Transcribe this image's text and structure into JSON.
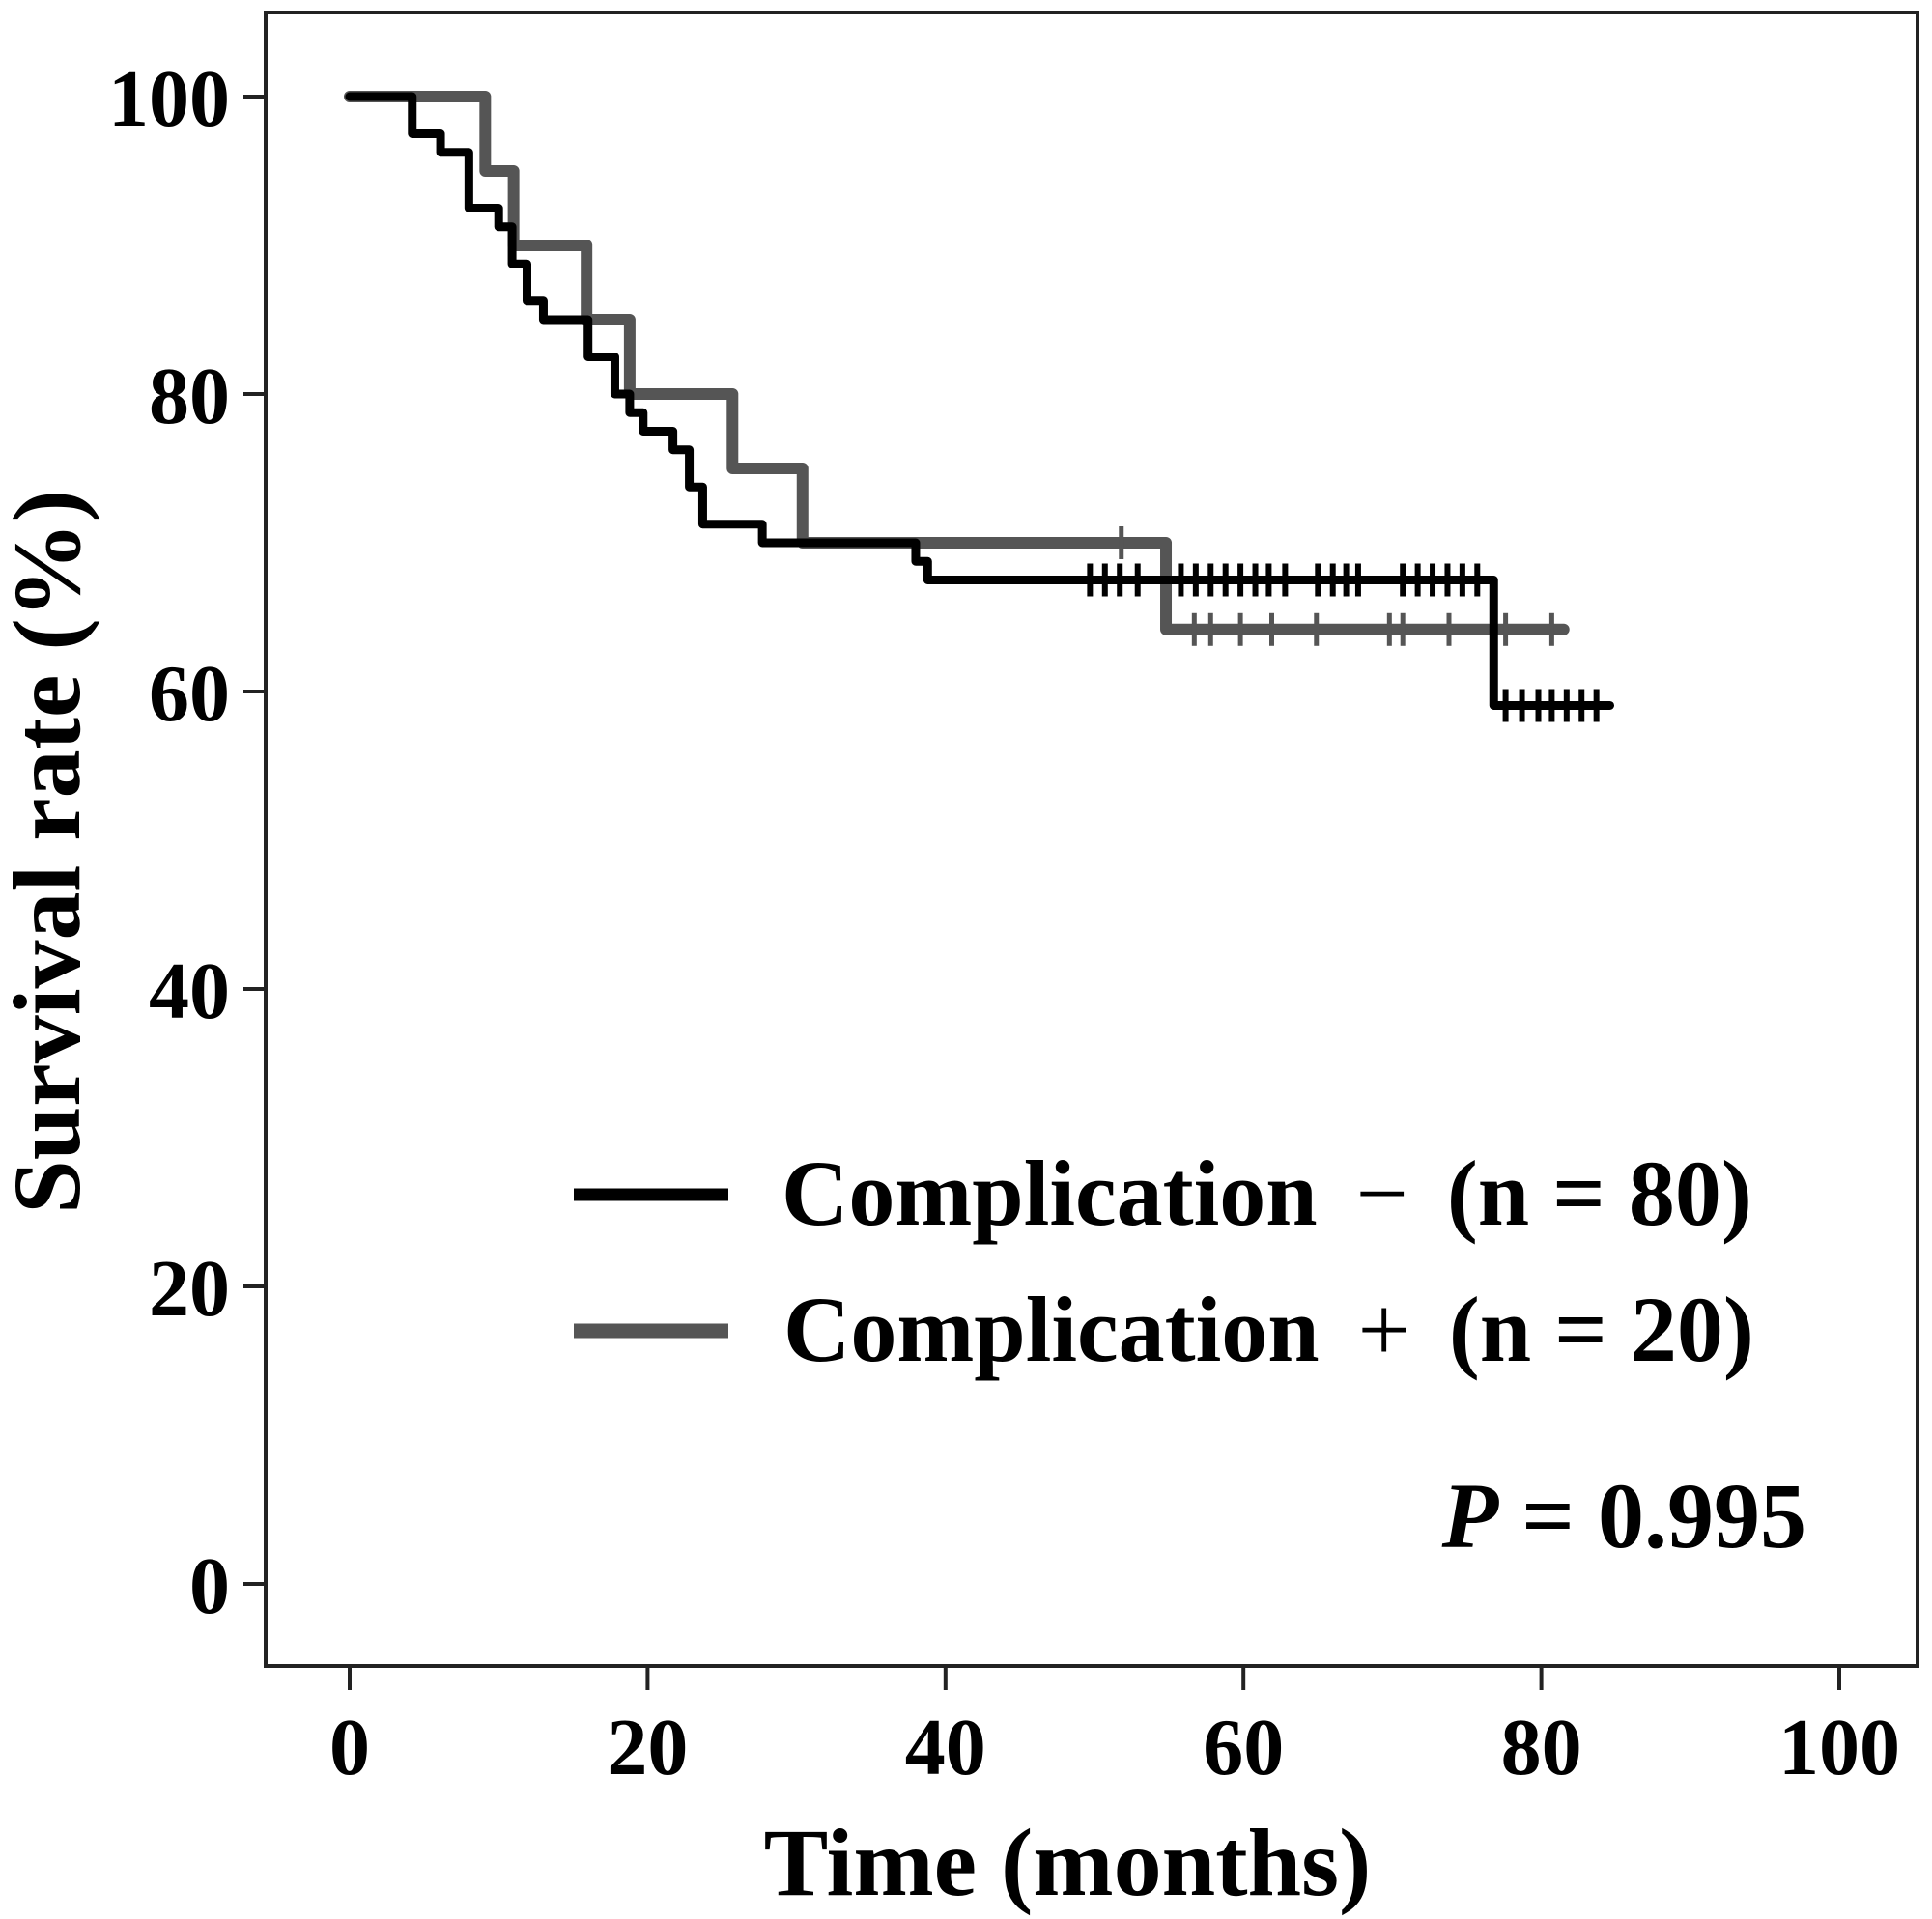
{
  "chart_data": {
    "type": "line",
    "subtype": "kaplan-meier step",
    "xlabel": "Time (months)",
    "ylabel": "Survival rate (%)",
    "xlim": [
      0,
      100
    ],
    "ylim": [
      0,
      100
    ],
    "x_ticks": [
      "0",
      "20",
      "40",
      "60",
      "80",
      "100"
    ],
    "y_ticks": [
      "0",
      "20",
      "40",
      "60",
      "80",
      "100"
    ],
    "grid": false,
    "legend_placement": "bottom-right",
    "annotation": {
      "italic": "P",
      "rest": " = 0.995"
    },
    "series": [
      {
        "name": "Complication − (n = 80)",
        "color": "#000000",
        "steps": [
          [
            0,
            100
          ],
          [
            4.2,
            97.5
          ],
          [
            6.1,
            96.25
          ],
          [
            8.0,
            92.5
          ],
          [
            10.0,
            91.25
          ],
          [
            10.9,
            88.75
          ],
          [
            11.9,
            86.25
          ],
          [
            13.0,
            85
          ],
          [
            16.0,
            82.5
          ],
          [
            17.8,
            80
          ],
          [
            18.8,
            78.75
          ],
          [
            19.7,
            77.5
          ],
          [
            21.7,
            76.25
          ],
          [
            22.8,
            73.75
          ],
          [
            23.7,
            71.25
          ],
          [
            27.7,
            70
          ],
          [
            38.0,
            68.75
          ],
          [
            38.8,
            67.5
          ],
          [
            76.8,
            59.06
          ]
        ],
        "end": 84.6,
        "censored": [
          49.7,
          50.7,
          51.7,
          52.9,
          55.8,
          56.8,
          57.8,
          58.8,
          59.8,
          60.8,
          61.7,
          62.8,
          65.0,
          66.0,
          66.9,
          67.7,
          70.7,
          71.7,
          72.7,
          73.7,
          74.7,
          75.7,
          77.6,
          78.7,
          79.8,
          80.7,
          81.7,
          82.7,
          83.7
        ]
      },
      {
        "name": "Complication + (n = 20)",
        "color": "#555555",
        "steps": [
          [
            0,
            100
          ],
          [
            9.1,
            95
          ],
          [
            11.0,
            90
          ],
          [
            15.9,
            85
          ],
          [
            18.8,
            80
          ],
          [
            25.7,
            75
          ],
          [
            30.4,
            70
          ],
          [
            54.8,
            64.17
          ]
        ],
        "end": 81.5,
        "censored": [
          51.8,
          56.7,
          57.8,
          59.8,
          61.9,
          64.9,
          69.8,
          70.7,
          73.8,
          77.6,
          80.7
        ]
      }
    ],
    "legend": [
      {
        "label": "Complication",
        "sign": "−",
        "n": "(n = 80)",
        "color": "#000000"
      },
      {
        "label": "Complication",
        "sign": "+",
        "n": "(n = 20)",
        "color": "#555555"
      }
    ]
  }
}
